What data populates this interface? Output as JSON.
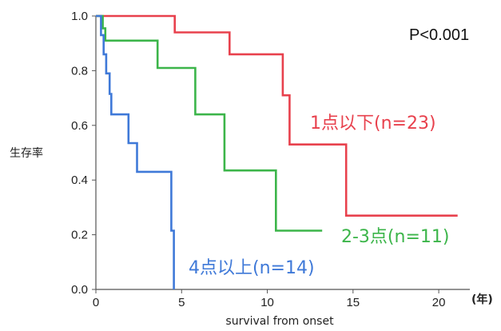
{
  "chart_data": {
    "type": "line",
    "step": true,
    "title": "",
    "xlabel": "survival from onset",
    "xunit": "(年)",
    "ylabel": "生存率",
    "annotation": "P<0.001",
    "xlim": [
      0,
      22
    ],
    "ylim": [
      0,
      1.0
    ],
    "xticks": [
      "0",
      "5",
      "10",
      "15",
      "20"
    ],
    "xtick_values": [
      0,
      5,
      10,
      15,
      20
    ],
    "yticks": [
      "0.0",
      "0.2",
      "0.4",
      "0.6",
      "0.8",
      "1.0"
    ],
    "ytick_values": [
      0.0,
      0.2,
      0.4,
      0.6,
      0.8,
      1.0
    ],
    "grid": false,
    "series": [
      {
        "name": "1点以下(n=23)",
        "color": "#e8414d",
        "x": [
          0,
          4.6,
          4.6,
          7.8,
          7.8,
          10.9,
          10.9,
          11.3,
          11.3,
          14.6,
          14.6,
          21.1
        ],
        "y": [
          1.0,
          1.0,
          0.94,
          0.94,
          0.86,
          0.86,
          0.71,
          0.71,
          0.53,
          0.53,
          0.27,
          0.27
        ]
      },
      {
        "name": "2-3点(n=11)",
        "color": "#3cb54a",
        "x": [
          0,
          0.4,
          0.4,
          0.55,
          0.55,
          3.6,
          3.6,
          5.8,
          5.8,
          7.5,
          7.5,
          10.5,
          10.5,
          13.2
        ],
        "y": [
          1.0,
          1.0,
          0.955,
          0.955,
          0.91,
          0.91,
          0.81,
          0.81,
          0.64,
          0.64,
          0.435,
          0.435,
          0.215,
          0.215
        ]
      },
      {
        "name": "4点以上(n=14)",
        "color": "#3f79d8",
        "x": [
          0,
          0.3,
          0.3,
          0.45,
          0.45,
          0.6,
          0.6,
          0.8,
          0.8,
          0.9,
          0.9,
          1.9,
          1.9,
          2.4,
          2.4,
          4.4,
          4.4,
          4.55,
          4.55
        ],
        "y": [
          1.0,
          1.0,
          0.93,
          0.93,
          0.86,
          0.86,
          0.79,
          0.79,
          0.715,
          0.715,
          0.64,
          0.64,
          0.535,
          0.535,
          0.43,
          0.43,
          0.215,
          0.215,
          0.0
        ]
      }
    ]
  }
}
